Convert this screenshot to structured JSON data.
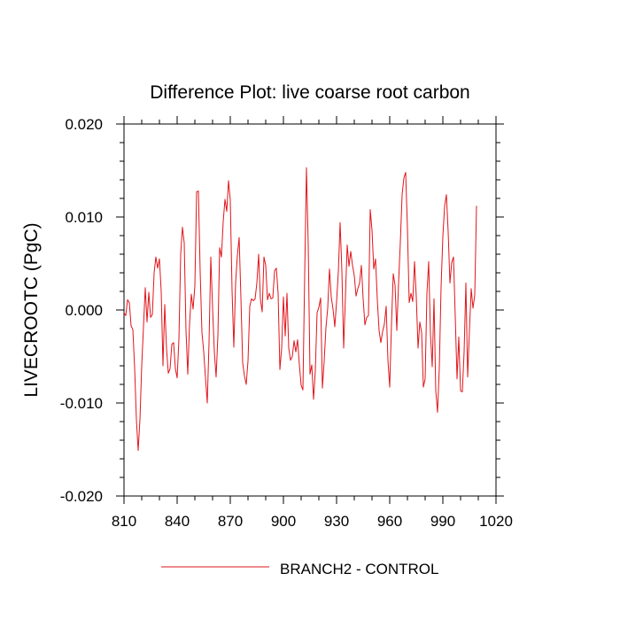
{
  "chart_data": {
    "type": "line",
    "title": "Difference Plot: live coarse root carbon",
    "xlabel": "",
    "ylabel": "LIVECROOTC  (PgC)",
    "xlim": [
      810,
      1020
    ],
    "ylim": [
      -0.02,
      0.02
    ],
    "x_ticks": [
      810,
      840,
      870,
      900,
      930,
      960,
      990,
      1020
    ],
    "x_tick_labels": [
      "810",
      "840",
      "870",
      "900",
      "930",
      "960",
      "990",
      "1020"
    ],
    "y_ticks": [
      -0.02,
      -0.01,
      0.0,
      0.01,
      0.02
    ],
    "y_tick_labels": [
      "-0.020",
      "-0.010",
      "0.000",
      "0.010",
      "0.020"
    ],
    "grid": false,
    "legend_position": "bottom-center",
    "series": [
      {
        "name": "BRANCH2 - CONTROL",
        "color": "#e0151b",
        "x_start": 810,
        "x_step": 1,
        "values": [
          -0.0003,
          -0.0006,
          0.0011,
          0.0008,
          -0.0017,
          -0.0021,
          -0.0062,
          -0.0118,
          -0.0151,
          -0.0118,
          -0.006,
          -0.0018,
          0.0024,
          -0.0013,
          0.0019,
          -0.0008,
          -0.0005,
          0.004,
          0.0057,
          0.0045,
          0.0055,
          0.002,
          -0.006,
          0.0006,
          -0.0041,
          -0.0068,
          -0.0063,
          -0.0037,
          -0.0035,
          -0.0063,
          -0.0073,
          -0.0032,
          0.006,
          0.0089,
          0.0072,
          -0.0022,
          -0.0069,
          -0.0015,
          0.0017,
          0.0001,
          0.0026,
          0.0127,
          0.0128,
          0.0041,
          -0.0024,
          -0.0045,
          -0.0073,
          -0.01,
          -0.0035,
          0.0057,
          0.0002,
          -0.0045,
          -0.0072,
          -0.0028,
          0.0067,
          0.0057,
          0.0095,
          0.0119,
          0.0106,
          0.0139,
          0.0118,
          0.0021,
          -0.004,
          0.0029,
          0.0059,
          0.0078,
          0.0013,
          -0.0057,
          -0.0071,
          -0.008,
          -0.0055,
          0.0004,
          0.0012,
          0.001,
          0.0012,
          0.0029,
          0.006,
          0.0012,
          -0.0002,
          0.0057,
          0.0048,
          0.0011,
          0.0018,
          0.0012,
          0.0013,
          0.0042,
          0.0045,
          0.0018,
          -0.0064,
          -0.0041,
          0.0014,
          -0.0028,
          0.0018,
          -0.0041,
          -0.0054,
          -0.005,
          -0.0033,
          -0.0045,
          -0.0032,
          -0.0059,
          -0.0081,
          -0.0086,
          0.0038,
          0.0153,
          0.007,
          -0.0069,
          -0.0059,
          -0.0096,
          -0.0065,
          -0.0003,
          0.0003,
          0.0013,
          -0.0084,
          -0.0055,
          -0.0019,
          0.0002,
          0.0044,
          0.0014,
          0.0001,
          -0.0018,
          0.0009,
          0.0041,
          0.0094,
          0.0042,
          -0.0041,
          0.0015,
          0.007,
          0.0047,
          0.0063,
          0.0048,
          0.0037,
          0.0015,
          0.0023,
          0.0029,
          0.0048,
          0.0012,
          -0.0016,
          -0.0008,
          -0.0006,
          0.0108,
          0.0086,
          0.0044,
          0.0055,
          0.0011,
          -0.0022,
          -0.0035,
          -0.0023,
          -0.0015,
          0.0004,
          -0.0054,
          -0.0083,
          -0.0015,
          0.0039,
          0.0027,
          -0.0022,
          0.0029,
          0.0073,
          0.0124,
          0.0142,
          0.0148,
          0.0088,
          0.0008,
          0.0018,
          0.0009,
          0.0052,
          0.0014,
          -0.0041,
          -0.0013,
          -0.0024,
          -0.0083,
          -0.0074,
          0.0018,
          0.0052,
          -0.0026,
          -0.0061,
          0.0012,
          -0.0087,
          -0.011,
          -0.0062,
          0.0025,
          0.0079,
          0.0112,
          0.0124,
          0.0084,
          0.0029,
          0.0051,
          0.0057,
          -0.0007,
          -0.0074,
          -0.0029,
          -0.0087,
          -0.0088,
          -0.0045,
          0.0029,
          -0.0072,
          -0.0022,
          0.0023,
          0.0002,
          0.0016,
          0.0112
        ]
      }
    ]
  }
}
